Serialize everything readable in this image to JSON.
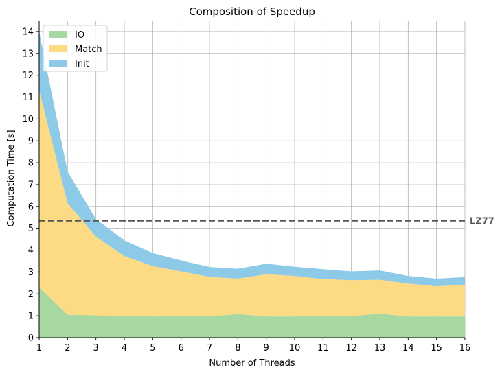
{
  "chart_data": {
    "type": "area",
    "stacked": true,
    "title": "Composition of Speedup",
    "xlabel": "Number of Threads",
    "ylabel": "Computation Time [s]",
    "xlim": [
      1,
      16
    ],
    "ylim": [
      0,
      14.5
    ],
    "grid": true,
    "legend": "top-left",
    "x": [
      1,
      2,
      3,
      4,
      5,
      6,
      7,
      8,
      9,
      10,
      11,
      12,
      13,
      14,
      15,
      16
    ],
    "x_ticks": [
      "1",
      "2",
      "3",
      "4",
      "5",
      "6",
      "7",
      "8",
      "9",
      "10",
      "11",
      "12",
      "13",
      "14",
      "15",
      "16"
    ],
    "y_ticks": [
      "0",
      "1",
      "2",
      "3",
      "4",
      "5",
      "6",
      "7",
      "8",
      "9",
      "10",
      "11",
      "12",
      "13",
      "14"
    ],
    "series": [
      {
        "name": "IO",
        "color": "#a8d8a2",
        "values": [
          2.3,
          1.05,
          1.02,
          0.98,
          0.97,
          0.98,
          0.98,
          1.08,
          0.97,
          0.97,
          0.98,
          0.98,
          1.1,
          0.97,
          0.97,
          0.97
        ]
      },
      {
        "name": "Match",
        "color": "#fddb85",
        "values": [
          9.0,
          5.1,
          3.6,
          2.75,
          2.3,
          2.05,
          1.8,
          1.62,
          1.93,
          1.85,
          1.7,
          1.65,
          1.55,
          1.5,
          1.38,
          1.45
        ]
      },
      {
        "name": "Init",
        "color": "#8ccae8",
        "values": [
          2.7,
          1.45,
          0.8,
          0.72,
          0.6,
          0.5,
          0.45,
          0.45,
          0.48,
          0.42,
          0.45,
          0.4,
          0.42,
          0.35,
          0.35,
          0.35
        ]
      }
    ],
    "reference_line": {
      "label": "LZ77",
      "y": 5.35,
      "color": "#555555",
      "style": "dashed"
    }
  }
}
